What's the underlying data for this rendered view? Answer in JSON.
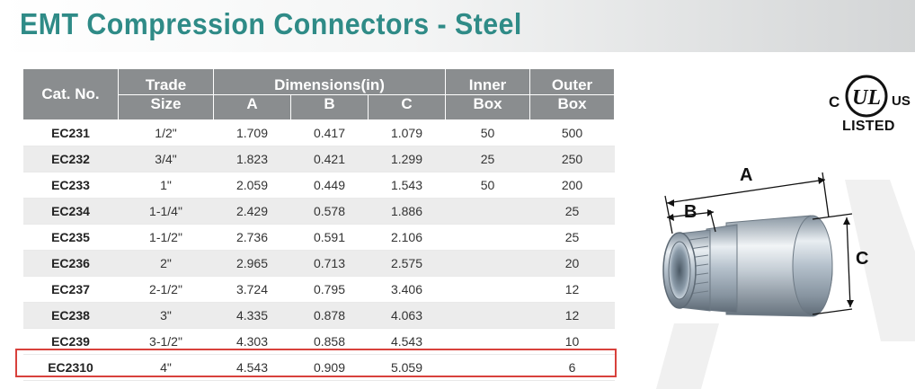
{
  "title": "EMT Compression Connectors - Steel",
  "table": {
    "headers": {
      "cat_no": "Cat. No.",
      "trade_top": "Trade",
      "trade_bottom": "Size",
      "dimensions": "Dimensions(in)",
      "dim_a": "A",
      "dim_b": "B",
      "dim_c": "C",
      "inner_top": "Inner",
      "inner_bottom": "Box",
      "outer_top": "Outer",
      "outer_bottom": "Box"
    },
    "rows": [
      {
        "cat": "EC231",
        "size": "1/2\"",
        "a": "1.709",
        "b": "0.417",
        "c": "1.079",
        "inner": "50",
        "outer": "500"
      },
      {
        "cat": "EC232",
        "size": "3/4\"",
        "a": "1.823",
        "b": "0.421",
        "c": "1.299",
        "inner": "25",
        "outer": "250"
      },
      {
        "cat": "EC233",
        "size": "1\"",
        "a": "2.059",
        "b": "0.449",
        "c": "1.543",
        "inner": "50",
        "outer": "200"
      },
      {
        "cat": "EC234",
        "size": "1-1/4\"",
        "a": "2.429",
        "b": "0.578",
        "c": "1.886",
        "inner": "",
        "outer": "25"
      },
      {
        "cat": "EC235",
        "size": "1-1/2\"",
        "a": "2.736",
        "b": "0.591",
        "c": "2.106",
        "inner": "",
        "outer": "25"
      },
      {
        "cat": "EC236",
        "size": "2\"",
        "a": "2.965",
        "b": "0.713",
        "c": "2.575",
        "inner": "",
        "outer": "20"
      },
      {
        "cat": "EC237",
        "size": "2-1/2\"",
        "a": "3.724",
        "b": "0.795",
        "c": "3.406",
        "inner": "",
        "outer": "12"
      },
      {
        "cat": "EC238",
        "size": "3\"",
        "a": "4.335",
        "b": "0.878",
        "c": "4.063",
        "inner": "",
        "outer": "12"
      },
      {
        "cat": "EC239",
        "size": "3-1/2\"",
        "a": "4.303",
        "b": "0.858",
        "c": "4.543",
        "inner": "",
        "outer": "10"
      },
      {
        "cat": "EC2310",
        "size": "4\"",
        "a": "4.543",
        "b": "0.909",
        "c": "5.059",
        "inner": "",
        "outer": "6"
      }
    ],
    "highlighted_row": "EC2310"
  },
  "certification": {
    "left": "C",
    "mark": "UL",
    "right": "US",
    "label": "LISTED"
  },
  "illustration": {
    "label_a": "A",
    "label_b": "B",
    "label_c": "C"
  },
  "colors": {
    "title": "#2f8b87",
    "header_bg": "#8a8d8f",
    "row_alt": "#ececec",
    "highlight": "#d8413c"
  }
}
